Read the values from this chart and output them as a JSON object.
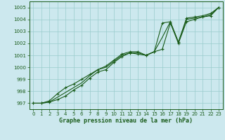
{
  "title": "Graphe pression niveau de la mer (hPa)",
  "background_color": "#cce8ee",
  "grid_color": "#99cccc",
  "line_color": "#1a5c1a",
  "ylim": [
    996.5,
    1005.5
  ],
  "xlim": [
    -0.5,
    23.5
  ],
  "yticks": [
    997,
    998,
    999,
    1000,
    1001,
    1002,
    1003,
    1004,
    1005
  ],
  "xticks": [
    0,
    1,
    2,
    3,
    4,
    5,
    6,
    7,
    8,
    9,
    10,
    11,
    12,
    13,
    14,
    15,
    16,
    17,
    18,
    19,
    20,
    21,
    22,
    23
  ],
  "series1": [
    997.0,
    997.0,
    997.1,
    997.3,
    997.6,
    998.1,
    998.5,
    999.1,
    999.6,
    999.8,
    1000.4,
    1000.9,
    1001.2,
    1001.1,
    1001.0,
    1001.3,
    1001.5,
    1003.7,
    1002.0,
    1003.8,
    1004.0,
    1004.2,
    1004.3,
    1005.0
  ],
  "series2": [
    997.0,
    997.0,
    997.1,
    997.5,
    997.9,
    998.3,
    998.7,
    999.3,
    999.8,
    1000.0,
    1000.5,
    1001.0,
    1001.2,
    1001.2,
    1001.0,
    1001.3,
    1002.5,
    1003.8,
    1002.1,
    1004.0,
    1004.1,
    1004.2,
    1004.4,
    1005.0
  ],
  "series3": [
    997.0,
    997.0,
    997.2,
    997.8,
    998.3,
    998.6,
    999.0,
    999.4,
    999.8,
    1000.1,
    1000.6,
    1001.1,
    1001.3,
    1001.3,
    1001.0,
    1001.3,
    1003.7,
    1003.8,
    1002.1,
    1004.1,
    1004.2,
    1004.3,
    1004.5,
    1005.0
  ]
}
